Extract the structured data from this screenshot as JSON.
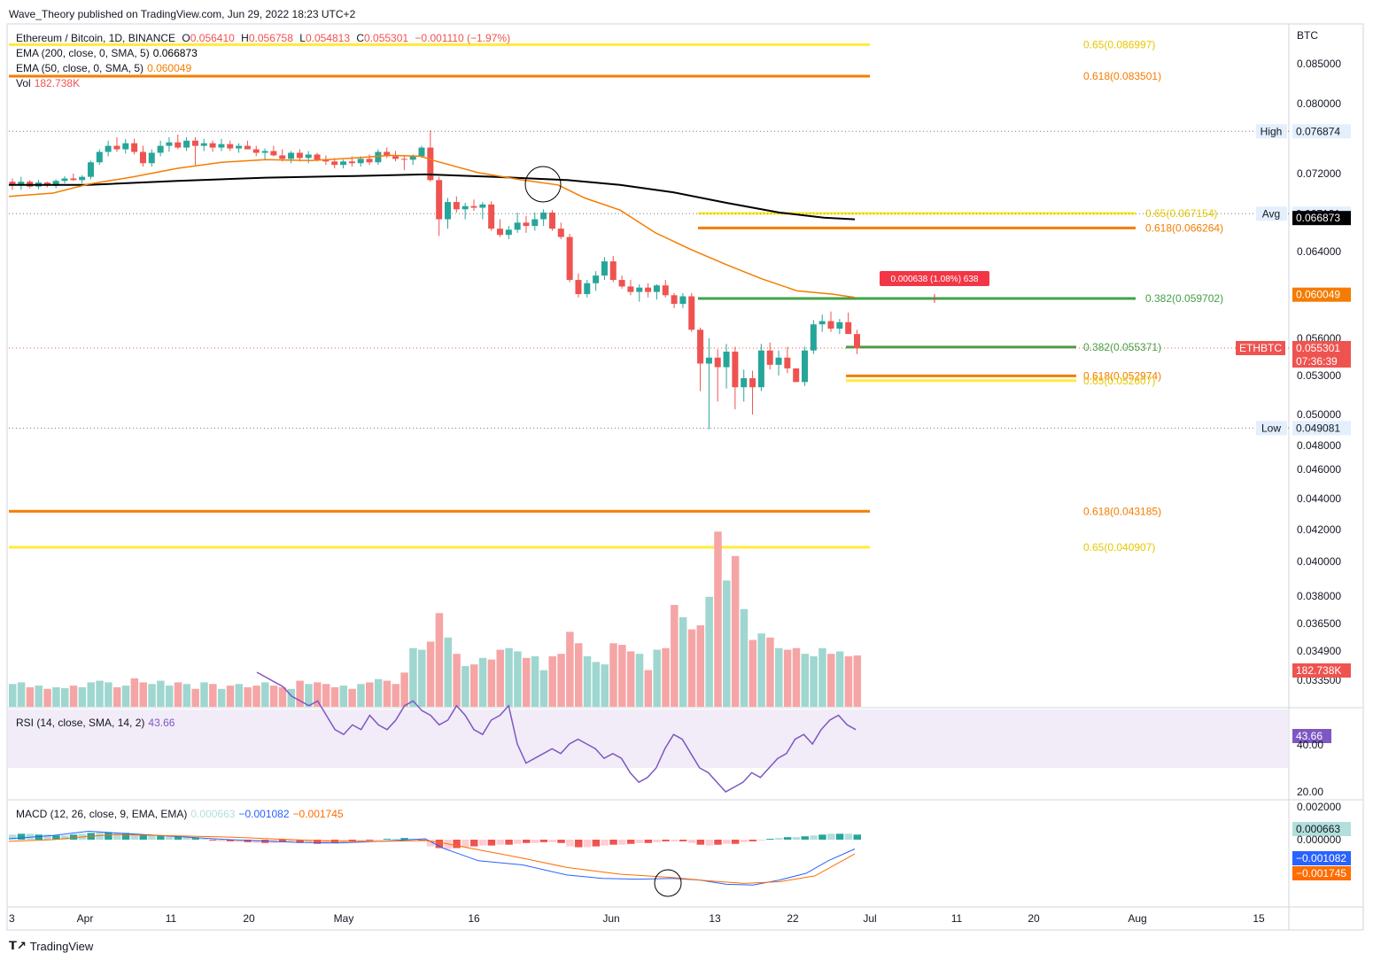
{
  "header": {
    "published": "Wave_Theory published on TradingView.com, Jun 29, 2022 18:23 UTC+2"
  },
  "legend": {
    "symbol": "Ethereum / Bitcoin, 1D, BINANCE",
    "o_label": "O",
    "o": "0.056410",
    "h_label": "H",
    "h": "0.056758",
    "l_label": "L",
    "l": "0.054813",
    "c_label": "C",
    "c": "0.055301",
    "change": "−0.001110 (−1.97%)",
    "ema200_label": "EMA (200, close, 0, SMA, 5)",
    "ema200": "0.066873",
    "ema50_label": "EMA (50, close, 0, SMA, 5)",
    "ema50": "0.060049",
    "vol_label": "Vol",
    "vol": "182.738K",
    "rsi_label": "RSI (14, close, SMA, 14, 2)",
    "rsi": "43.66",
    "macd_label": "MACD (12, 26, close, 9, EMA, EMA)",
    "macd_hist": "0.000663",
    "macd_line": "−0.001082",
    "macd_signal": "−0.001745"
  },
  "footer": {
    "brand": "TradingView"
  },
  "colors": {
    "up": "#26a69a",
    "down": "#ef5350",
    "ema200": "#000000",
    "ema50": "#f57c00",
    "fib_gold": "#ffeb3b",
    "fib_orange": "#f57c00",
    "fib_green": "#43a047",
    "rsi": "#7e57c2",
    "macd": "#2962ff",
    "signal": "#ff6d00"
  },
  "chart_data": {
    "type": "candlestick",
    "currency": "BTC",
    "ylim": [
      0.0325,
      0.0885
    ],
    "price_axis_ticks": [
      "0.085000",
      "0.080000",
      "0.072000",
      "0.064000",
      "0.056000",
      "0.053000",
      "0.050000",
      "0.048000",
      "0.046000",
      "0.044000",
      "0.042000",
      "0.040000",
      "0.038000",
      "0.036500",
      "0.034900",
      "0.033500"
    ],
    "x_ticks": [
      "3",
      "Apr",
      "11",
      "20",
      "May",
      "16",
      "Jun",
      "13",
      "22",
      "Jul",
      "11",
      "20",
      "Aug",
      "15"
    ],
    "candles": [
      [
        0.071,
        0.0714,
        0.07,
        0.0706
      ],
      [
        0.0706,
        0.0716,
        0.07,
        0.071
      ],
      [
        0.071,
        0.0712,
        0.0702,
        0.0704
      ],
      [
        0.0704,
        0.0712,
        0.0701,
        0.0709
      ],
      [
        0.0709,
        0.071,
        0.0703,
        0.0705
      ],
      [
        0.0705,
        0.0713,
        0.0702,
        0.0711
      ],
      [
        0.0711,
        0.0717,
        0.0708,
        0.0714
      ],
      [
        0.0714,
        0.072,
        0.0711,
        0.0712
      ],
      [
        0.0712,
        0.0718,
        0.0708,
        0.0716
      ],
      [
        0.0716,
        0.0735,
        0.0713,
        0.0733
      ],
      [
        0.0733,
        0.0748,
        0.073,
        0.0745
      ],
      [
        0.0745,
        0.0758,
        0.074,
        0.0752
      ],
      [
        0.0752,
        0.0762,
        0.0745,
        0.0748
      ],
      [
        0.0748,
        0.076,
        0.0743,
        0.0755
      ],
      [
        0.0755,
        0.076,
        0.0742,
        0.0745
      ],
      [
        0.0745,
        0.0752,
        0.0728,
        0.0732
      ],
      [
        0.0732,
        0.0748,
        0.0728,
        0.0744
      ],
      [
        0.0744,
        0.0758,
        0.074,
        0.0752
      ],
      [
        0.0752,
        0.0762,
        0.0745,
        0.0756
      ],
      [
        0.0756,
        0.0765,
        0.0748,
        0.075
      ],
      [
        0.075,
        0.0762,
        0.0746,
        0.0758
      ],
      [
        0.0758,
        0.0762,
        0.073,
        0.0752
      ],
      [
        0.0752,
        0.076,
        0.0746,
        0.0755
      ],
      [
        0.0755,
        0.0758,
        0.0745,
        0.075
      ],
      [
        0.075,
        0.076,
        0.0746,
        0.0754
      ],
      [
        0.0754,
        0.0758,
        0.0746,
        0.0749
      ],
      [
        0.0749,
        0.0755,
        0.0744,
        0.0752
      ],
      [
        0.0752,
        0.0758,
        0.0748,
        0.0748
      ],
      [
        0.0748,
        0.0752,
        0.074,
        0.0744
      ],
      [
        0.0744,
        0.0749,
        0.0736,
        0.0746
      ],
      [
        0.0746,
        0.0752,
        0.074,
        0.0741
      ],
      [
        0.0741,
        0.0748,
        0.0734,
        0.0737
      ],
      [
        0.0737,
        0.0746,
        0.0732,
        0.0744
      ],
      [
        0.0744,
        0.0748,
        0.0734,
        0.0738
      ],
      [
        0.0738,
        0.0746,
        0.0732,
        0.0742
      ],
      [
        0.0742,
        0.0744,
        0.0734,
        0.0736
      ],
      [
        0.0736,
        0.0741,
        0.073,
        0.0734
      ],
      [
        0.0734,
        0.0738,
        0.0726,
        0.073
      ],
      [
        0.073,
        0.0736,
        0.0726,
        0.0734
      ],
      [
        0.0734,
        0.074,
        0.0728,
        0.0732
      ],
      [
        0.0732,
        0.074,
        0.0728,
        0.0737
      ],
      [
        0.0737,
        0.0742,
        0.073,
        0.0733
      ],
      [
        0.0733,
        0.0748,
        0.073,
        0.0745
      ],
      [
        0.0745,
        0.075,
        0.0738,
        0.074
      ],
      [
        0.074,
        0.0746,
        0.0734,
        0.0737
      ],
      [
        0.0737,
        0.074,
        0.0724,
        0.0736
      ],
      [
        0.0736,
        0.0742,
        0.073,
        0.074
      ],
      [
        0.074,
        0.0752,
        0.0738,
        0.075
      ],
      [
        0.075,
        0.077,
        0.071,
        0.0712
      ],
      [
        0.0712,
        0.0716,
        0.0655,
        0.0668
      ],
      [
        0.0668,
        0.069,
        0.0662,
        0.0685
      ],
      [
        0.0685,
        0.0692,
        0.0672,
        0.0676
      ],
      [
        0.0676,
        0.0684,
        0.0668,
        0.068
      ],
      [
        0.068,
        0.0688,
        0.0674,
        0.0678
      ],
      [
        0.0678,
        0.0685,
        0.0668,
        0.0682
      ],
      [
        0.0682,
        0.0686,
        0.066,
        0.0662
      ],
      [
        0.0662,
        0.0668,
        0.0654,
        0.0656
      ],
      [
        0.0656,
        0.0664,
        0.0652,
        0.0661
      ],
      [
        0.0661,
        0.0672,
        0.0658,
        0.0666
      ],
      [
        0.0666,
        0.067,
        0.0658,
        0.0664
      ],
      [
        0.0664,
        0.0672,
        0.066,
        0.0668
      ],
      [
        0.0668,
        0.0676,
        0.0664,
        0.0672
      ],
      [
        0.0672,
        0.0675,
        0.066,
        0.0662
      ],
      [
        0.0662,
        0.0666,
        0.0652,
        0.0654
      ],
      [
        0.0654,
        0.0657,
        0.0612,
        0.0614
      ],
      [
        0.0614,
        0.062,
        0.0598,
        0.0601
      ],
      [
        0.0601,
        0.0614,
        0.0598,
        0.0611
      ],
      [
        0.0611,
        0.0622,
        0.0604,
        0.0618
      ],
      [
        0.0618,
        0.0635,
        0.0614,
        0.0631
      ],
      [
        0.0631,
        0.0636,
        0.0612,
        0.0614
      ],
      [
        0.0614,
        0.0618,
        0.0606,
        0.0608
      ],
      [
        0.0608,
        0.0614,
        0.06,
        0.0603
      ],
      [
        0.0603,
        0.061,
        0.0594,
        0.0607
      ],
      [
        0.0607,
        0.0611,
        0.0598,
        0.0603
      ],
      [
        0.0603,
        0.061,
        0.0596,
        0.0609
      ],
      [
        0.0609,
        0.0614,
        0.0598,
        0.06
      ],
      [
        0.06,
        0.0602,
        0.0588,
        0.0592
      ],
      [
        0.0592,
        0.0602,
        0.0588,
        0.0599
      ],
      [
        0.0599,
        0.0602,
        0.0566,
        0.0568
      ],
      [
        0.0568,
        0.057,
        0.0518,
        0.054
      ],
      [
        0.054,
        0.056,
        0.049,
        0.0545
      ],
      [
        0.0545,
        0.0552,
        0.051,
        0.0537
      ],
      [
        0.0537,
        0.0556,
        0.052,
        0.055
      ],
      [
        0.055,
        0.0554,
        0.0504,
        0.0521
      ],
      [
        0.0521,
        0.0535,
        0.051,
        0.0528
      ],
      [
        0.0528,
        0.0534,
        0.05,
        0.0521
      ],
      [
        0.0521,
        0.0556,
        0.0518,
        0.0551
      ],
      [
        0.0551,
        0.0557,
        0.0535,
        0.0539
      ],
      [
        0.0539,
        0.0551,
        0.053,
        0.0545
      ],
      [
        0.0545,
        0.0554,
        0.0532,
        0.0536
      ],
      [
        0.0536,
        0.0536,
        0.0525,
        0.0525
      ],
      [
        0.0525,
        0.0554,
        0.0522,
        0.0551
      ],
      [
        0.0551,
        0.0577,
        0.0548,
        0.0573
      ],
      [
        0.0573,
        0.0582,
        0.0566,
        0.0576
      ],
      [
        0.0576,
        0.0585,
        0.0566,
        0.0569
      ],
      [
        0.0569,
        0.0578,
        0.0564,
        0.0575
      ],
      [
        0.0575,
        0.0584,
        0.0564,
        0.0564
      ],
      [
        0.0564,
        0.0568,
        0.0548,
        0.0553
      ]
    ],
    "ema50": [
      [
        10,
        0.0692
      ],
      [
        60,
        0.0696
      ],
      [
        100,
        0.0707
      ],
      [
        150,
        0.0716
      ],
      [
        200,
        0.0726
      ],
      [
        250,
        0.0733
      ],
      [
        300,
        0.0736
      ],
      [
        350,
        0.0735
      ],
      [
        400,
        0.0738
      ],
      [
        440,
        0.0741
      ],
      [
        475,
        0.074
      ],
      [
        490,
        0.0735
      ],
      [
        540,
        0.0721
      ],
      [
        590,
        0.0712
      ],
      [
        630,
        0.0706
      ],
      [
        660,
        0.069
      ],
      [
        700,
        0.0675
      ],
      [
        740,
        0.0658
      ],
      [
        780,
        0.0642
      ],
      [
        820,
        0.0628
      ],
      [
        860,
        0.0615
      ],
      [
        900,
        0.0604
      ],
      [
        940,
        0.0601
      ],
      [
        965,
        0.0598
      ]
    ],
    "ema200": [
      [
        10,
        0.0706
      ],
      [
        100,
        0.0706
      ],
      [
        200,
        0.0711
      ],
      [
        300,
        0.0715
      ],
      [
        400,
        0.0717
      ],
      [
        480,
        0.0719
      ],
      [
        560,
        0.0716
      ],
      [
        640,
        0.0712
      ],
      [
        700,
        0.0706
      ],
      [
        760,
        0.0697
      ],
      [
        820,
        0.0684
      ],
      [
        880,
        0.0672
      ],
      [
        930,
        0.0669
      ],
      [
        965,
        0.0668
      ]
    ],
    "horizontal_levels": [
      {
        "label": "0.65(0.086997)",
        "price": 0.086997,
        "x1": 10,
        "x2": 982,
        "color": "#ffeb3b"
      },
      {
        "label": "0.618(0.083501)",
        "price": 0.083501,
        "x1": 10,
        "x2": 982,
        "color": "#f57c00"
      },
      {
        "label": "0.65(0.067154)",
        "price": 0.067154,
        "x1": 788,
        "x2": 1282,
        "color": "#ffeb3b"
      },
      {
        "label": "0.618(0.066264)",
        "price": 0.066264,
        "x1": 788,
        "x2": 1282,
        "color": "#f57c00"
      },
      {
        "label": "0.382(0.059702)",
        "price": 0.059702,
        "x1": 788,
        "x2": 1282,
        "color": "#43a047"
      },
      {
        "label": "0.382(0.055371)",
        "price": 0.055371,
        "x1": 955,
        "x2": 1215,
        "color": "#43a047"
      },
      {
        "label": "0.618(0.052974)",
        "price": 0.052974,
        "x1": 955,
        "x2": 1215,
        "color": "#f57c00"
      },
      {
        "label": "0.65(0.052607)",
        "price": 0.052607,
        "x1": 955,
        "x2": 1215,
        "color": "#ffeb3b"
      },
      {
        "label": "0.618(0.043185)",
        "price": 0.043185,
        "x1": 10,
        "x2": 982,
        "color": "#f57c00"
      },
      {
        "label": "0.65(0.040907)",
        "price": 0.040907,
        "x1": 10,
        "x2": 982,
        "color": "#ffeb3b"
      }
    ],
    "price_labels": [
      {
        "text": "High",
        "value": "0.076874",
        "price": 0.076874
      },
      {
        "text": "Avg",
        "value": "0.067131",
        "price": 0.067131
      },
      {
        "text": "",
        "value": "0.066873",
        "price": 0.066873,
        "bg": "#000000"
      },
      {
        "text": "",
        "value": "0.060049",
        "price": 0.060049,
        "bg": "#f57c00"
      },
      {
        "text": "ETHBTC",
        "value": "0.055301",
        "price": 0.055301,
        "bg": "#ef5350",
        "sub": "07:36:39"
      },
      {
        "text": "Low",
        "value": "0.049081",
        "price": 0.049081
      }
    ],
    "measure_tooltip": "0.000638 (1.08%) 638",
    "volume": [
      0.28,
      0.3,
      0.24,
      0.26,
      0.22,
      0.24,
      0.23,
      0.26,
      0.24,
      0.3,
      0.32,
      0.3,
      0.24,
      0.26,
      0.35,
      0.3,
      0.28,
      0.32,
      0.26,
      0.3,
      0.28,
      0.22,
      0.3,
      0.28,
      0.22,
      0.26,
      0.28,
      0.24,
      0.26,
      0.3,
      0.26,
      0.24,
      0.22,
      0.32,
      0.28,
      0.3,
      0.28,
      0.24,
      0.26,
      0.22,
      0.28,
      0.3,
      0.34,
      0.32,
      0.28,
      0.42,
      0.72,
      0.7,
      0.8,
      1.15,
      0.85,
      0.65,
      0.5,
      0.52,
      0.6,
      0.58,
      0.7,
      0.72,
      0.68,
      0.6,
      0.62,
      0.45,
      0.62,
      0.65,
      0.92,
      0.78,
      0.62,
      0.55,
      0.52,
      0.78,
      0.76,
      0.68,
      0.65,
      0.45,
      0.7,
      0.72,
      1.25,
      1.1,
      0.95,
      1.0,
      1.35,
      2.15,
      1.55,
      1.85,
      1.2,
      0.82,
      0.9,
      0.85,
      0.72,
      0.7,
      0.72,
      0.65,
      0.62,
      0.72,
      0.65,
      0.68,
      0.62,
      0.63
    ],
    "vol_up": [
      1,
      1,
      0,
      1,
      0,
      1,
      1,
      0,
      1,
      1,
      1,
      1,
      0,
      1,
      0,
      0,
      1,
      1,
      1,
      0,
      1,
      0,
      1,
      0,
      1,
      0,
      1,
      0,
      0,
      1,
      0,
      0,
      1,
      0,
      1,
      0,
      0,
      0,
      1,
      0,
      1,
      0,
      1,
      0,
      0,
      0,
      1,
      1,
      0,
      0,
      1,
      0,
      1,
      0,
      1,
      0,
      0,
      1,
      1,
      0,
      1,
      1,
      0,
      0,
      0,
      0,
      1,
      1,
      1,
      0,
      0,
      0,
      1,
      0,
      1,
      0,
      0,
      1,
      0,
      0,
      1,
      0,
      1,
      0,
      1,
      0,
      1,
      0,
      1,
      0,
      0,
      1,
      1,
      1,
      0,
      1,
      0,
      0
    ],
    "rsi": [
      70,
      68,
      66,
      64,
      60,
      58,
      56,
      58,
      52,
      46,
      44,
      48,
      46,
      52,
      48,
      46,
      50,
      56,
      58,
      54,
      52,
      48,
      50,
      56,
      52,
      46,
      44,
      50,
      52,
      56,
      40,
      32,
      34,
      36,
      38,
      36,
      40,
      42,
      40,
      38,
      34,
      36,
      34,
      28,
      24,
      26,
      30,
      38,
      44,
      42,
      36,
      30,
      28,
      24,
      20,
      22,
      24,
      28,
      26,
      30,
      34,
      36,
      42,
      44,
      40,
      46,
      50,
      52,
      48,
      46
    ],
    "macd_hist": [
      0.0006,
      0.0007,
      0.0007,
      0.0006,
      0.0006,
      0.0005,
      0.0005,
      0.0006,
      0.0007,
      0.0008,
      0.0009,
      0.0009,
      0.0008,
      0.0008,
      0.0007,
      0.0006,
      0.0005,
      0.0005,
      0.0004,
      0.0004,
      0.0003,
      0.0002,
      0.0001,
      -0.0001,
      -0.0002,
      -0.0002,
      -0.0003,
      -0.0003,
      -0.0004,
      -0.0004,
      -0.0004,
      -0.0003,
      -0.0003,
      -0.0004,
      -0.0004,
      -0.0005,
      -0.0005,
      -0.0004,
      -0.0003,
      -0.0002,
      -0.0002,
      -0.0001,
      -0.0001,
      0.0001,
      0.0001,
      0.0002,
      0.0001,
      -0.0001,
      -0.0008,
      -0.001,
      -0.0011,
      -0.001,
      -0.0009,
      -0.0008,
      -0.0007,
      -0.0007,
      -0.0006,
      -0.0006,
      -0.0005,
      -0.0004,
      -0.0004,
      -0.0003,
      -0.0003,
      -0.0004,
      -0.0008,
      -0.0009,
      -0.0009,
      -0.0008,
      -0.0007,
      -0.0006,
      -0.0006,
      -0.0005,
      -0.0004,
      -0.0004,
      -0.0003,
      -0.0002,
      -0.0002,
      -0.0002,
      -0.0004,
      -0.0006,
      -0.0007,
      -0.0006,
      -0.0005,
      -0.0005,
      -0.0003,
      -0.0002,
      -0.0001,
      0.0001,
      0.0002,
      0.0003,
      0.0003,
      0.0004,
      0.0005,
      0.0006,
      0.0007,
      0.0007,
      0.0007,
      0.0006
    ],
    "macd_line": [
      [
        10,
        0.0001
      ],
      [
        60,
        0.0005
      ],
      [
        100,
        0.001
      ],
      [
        130,
        0.0008
      ],
      [
        180,
        0.0005
      ],
      [
        260,
        0.0
      ],
      [
        330,
        -0.0003
      ],
      [
        380,
        -0.0004
      ],
      [
        430,
        -0.0002
      ],
      [
        480,
        0.0001
      ],
      [
        500,
        -0.001
      ],
      [
        540,
        -0.0025
      ],
      [
        590,
        -0.003
      ],
      [
        640,
        -0.0042
      ],
      [
        680,
        -0.0046
      ],
      [
        720,
        -0.0047
      ],
      [
        760,
        -0.0046
      ],
      [
        790,
        -0.0048
      ],
      [
        820,
        -0.0053
      ],
      [
        850,
        -0.0054
      ],
      [
        880,
        -0.0048
      ],
      [
        910,
        -0.004
      ],
      [
        935,
        -0.0025
      ],
      [
        965,
        -0.0011
      ]
    ],
    "macd_signal": [
      [
        10,
        -0.0002
      ],
      [
        60,
        0.0
      ],
      [
        100,
        0.0004
      ],
      [
        130,
        0.0006
      ],
      [
        180,
        0.0005
      ],
      [
        260,
        0.0003
      ],
      [
        330,
        0.0
      ],
      [
        380,
        -0.0002
      ],
      [
        430,
        -0.0002
      ],
      [
        480,
        -0.0001
      ],
      [
        500,
        -0.0004
      ],
      [
        540,
        -0.0012
      ],
      [
        590,
        -0.0022
      ],
      [
        640,
        -0.0033
      ],
      [
        700,
        -0.0041
      ],
      [
        760,
        -0.0045
      ],
      [
        800,
        -0.0049
      ],
      [
        840,
        -0.0052
      ],
      [
        880,
        -0.005
      ],
      [
        920,
        -0.0043
      ],
      [
        965,
        -0.0017
      ]
    ],
    "macd_ticks": [
      "0.002000",
      "0.000000"
    ],
    "rsi_ticks": [
      "40.00",
      "20.00"
    ]
  }
}
